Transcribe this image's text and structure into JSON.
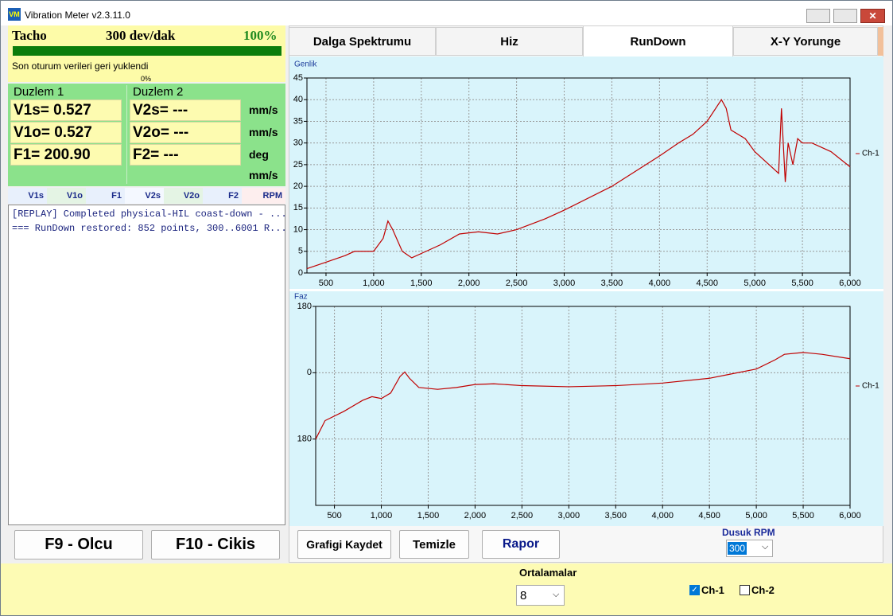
{
  "window": {
    "title": "Vibration Meter v2.3.11.0"
  },
  "status": {
    "tacho_label": "Tacho",
    "speed": "300 dev/dak",
    "percent_top": "100%",
    "message": "Son oturum verileri geri yuklendi",
    "percent_bottom": "0%"
  },
  "planes": [
    {
      "title": "Duzlem 1",
      "rows": [
        "V1s= 0.527",
        "V1o= 0.527",
        "F1= 200.90"
      ]
    },
    {
      "title": "Duzlem 2",
      "rows": [
        "V2s= ---",
        "V2o= ---",
        "F2= ---"
      ]
    }
  ],
  "units": [
    "mm/s",
    "mm/s",
    "deg",
    "mm/s"
  ],
  "columns": [
    "V1s",
    "V1o",
    "F1",
    "V2s",
    "V2o",
    "F2",
    "RPM"
  ],
  "log": [
    "[REPLAY] Completed physical-HIL coast-down - ...",
    "=== RunDown restored: 852 points, 300..6001 R..."
  ],
  "left_buttons": [
    "F9 - Olcu",
    "F10 - Cikis"
  ],
  "tabs": {
    "items": [
      "Dalga Spektrumu",
      "Hiz",
      "RunDown",
      "X-Y Yorunge"
    ],
    "active": 2
  },
  "chart_data": [
    {
      "type": "line",
      "title": "Genlik",
      "x": [
        300,
        500,
        700,
        800,
        1000,
        1100,
        1150,
        1200,
        1300,
        1400,
        1500,
        1700,
        1900,
        2100,
        2300,
        2500,
        2800,
        3000,
        3500,
        4000,
        4200,
        4350,
        4500,
        4650,
        4700,
        4750,
        4900,
        5000,
        5200,
        5250,
        5280,
        5320,
        5350,
        5400,
        5450,
        5500,
        5600,
        5800,
        6000
      ],
      "series": [
        {
          "name": "Ch-1",
          "color": "#c00000",
          "values": [
            1,
            2.5,
            4,
            5,
            5,
            8,
            12,
            10,
            5,
            3.5,
            4.5,
            6.5,
            9,
            9.5,
            9,
            10,
            12.5,
            14.5,
            20,
            27,
            30,
            32,
            35,
            40,
            38,
            33,
            31,
            28,
            24,
            23,
            38,
            21,
            30,
            25,
            31,
            30,
            30,
            28,
            24.5
          ]
        }
      ],
      "xlim": [
        300,
        6000
      ],
      "ylim": [
        0,
        45
      ],
      "xticks": [
        500,
        {
          "value": 1000,
          "label": "1,000"
        },
        {
          "value": 1500,
          "label": "1,500"
        },
        {
          "value": 2000,
          "label": "2,000"
        },
        {
          "value": 2500,
          "label": "2,500"
        },
        {
          "value": 3000,
          "label": "3,000"
        },
        {
          "value": 3500,
          "label": "3,500"
        },
        {
          "value": 4000,
          "label": "4,000"
        },
        {
          "value": 4500,
          "label": "4,500"
        },
        {
          "value": 5000,
          "label": "5,000"
        },
        {
          "value": 5500,
          "label": "5,500"
        },
        {
          "value": 6000,
          "label": "6,000"
        }
      ],
      "yticks": [
        0,
        5,
        10,
        15,
        20,
        25,
        30,
        35,
        40,
        45
      ],
      "grid": true
    },
    {
      "type": "line",
      "title": "Faz",
      "x": [
        300,
        400,
        600,
        800,
        900,
        1000,
        1100,
        1200,
        1250,
        1300,
        1400,
        1600,
        1800,
        2000,
        2200,
        2500,
        3000,
        3500,
        4000,
        4500,
        4700,
        5000,
        5200,
        5300,
        5500,
        5700,
        6000
      ],
      "series": [
        {
          "name": "Ch-1",
          "color": "#c00000",
          "values": [
            -180,
            -130,
            -105,
            -75,
            -65,
            -70,
            -55,
            -10,
            2,
            -15,
            -40,
            -45,
            -40,
            -32,
            -30,
            -35,
            -38,
            -35,
            -28,
            -15,
            -5,
            10,
            35,
            50,
            55,
            50,
            38
          ]
        }
      ],
      "xlim": [
        300,
        6000
      ],
      "ylim": [
        -360,
        180
      ],
      "xticks": [
        500,
        {
          "value": 1000,
          "label": "1,000"
        },
        {
          "value": 1500,
          "label": "1,500"
        },
        {
          "value": 2000,
          "label": "2,000"
        },
        {
          "value": 2500,
          "label": "2,500"
        },
        {
          "value": 3000,
          "label": "3,000"
        },
        {
          "value": 3500,
          "label": "3,500"
        },
        {
          "value": 4000,
          "label": "4,000"
        },
        {
          "value": 4500,
          "label": "4,500"
        },
        {
          "value": 5000,
          "label": "5,000"
        },
        {
          "value": 5500,
          "label": "5,500"
        },
        {
          "value": 6000,
          "label": "6,000"
        }
      ],
      "yticks": [
        180,
        0,
        {
          "value": -180,
          "label": "180"
        }
      ],
      "grid": true
    }
  ],
  "chart_buttons": [
    "Grafigi Kaydet",
    "Temizle",
    "Rapor"
  ],
  "low_rpm": {
    "label": "Dusuk RPM",
    "value": "300"
  },
  "averaging": {
    "label": "Ortalamalar",
    "value": "8"
  },
  "channels": [
    {
      "label": "Ch-1",
      "checked": true
    },
    {
      "label": "Ch-2",
      "checked": false
    }
  ]
}
